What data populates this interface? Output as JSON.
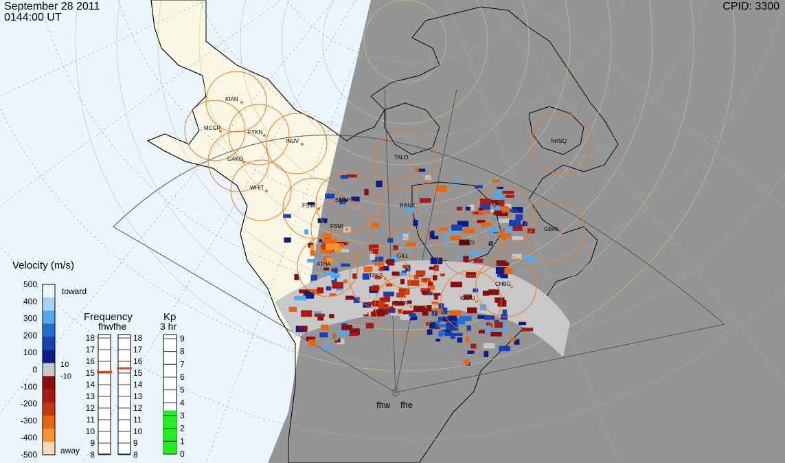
{
  "header": {
    "date": "September 28 2011",
    "time": "0144:00 UT",
    "cpid_label": "CPID:",
    "cpid": "3300"
  },
  "velocity_scale": {
    "title": "Velocity (m/s)",
    "toward": "toward",
    "away": "away",
    "ticks": [
      "500",
      "400",
      "300",
      "200",
      "100",
      "0",
      "-100",
      "-200",
      "-300",
      "-400",
      "-500"
    ],
    "small_pos": "10",
    "small_neg": "-10",
    "colors": [
      "#e8f4ff",
      "#a6d2f7",
      "#54a8ec",
      "#1f6fd3",
      "#1740b0",
      "#0a1e85",
      "#c8c8c8",
      "#8a0d0d",
      "#a91b10",
      "#c8380c",
      "#e8650d",
      "#f6932e",
      "#fcd8b3"
    ]
  },
  "frequency": {
    "title": "Frequency",
    "radars": "fhwfhe",
    "ticks": [
      "18",
      "17",
      "16",
      "15",
      "14",
      "13",
      "12",
      "11",
      "10",
      "9",
      "8"
    ],
    "fhw_value": 15.1,
    "fhe_value": 15.4
  },
  "kp": {
    "title": "Kp",
    "subtitle": "3 hr",
    "ticks": [
      "9",
      "8",
      "7",
      "6",
      "5",
      "4",
      "3",
      "2",
      "1",
      "0"
    ],
    "value": 3.4
  },
  "radar_labels": {
    "fhw": "fhw",
    "fhe": "fhe"
  },
  "stations": [
    {
      "code": "KIAN"
    },
    {
      "code": "MCGR"
    },
    {
      "code": "FYKN"
    },
    {
      "code": "INUV"
    },
    {
      "code": "GAKO"
    },
    {
      "code": "WHIT"
    },
    {
      "code": "FSIM"
    },
    {
      "code": "SNAP"
    },
    {
      "code": "FSMI"
    },
    {
      "code": "ATHA"
    },
    {
      "code": "TALO"
    },
    {
      "code": "RANK"
    },
    {
      "code": "KUUJ"
    },
    {
      "code": "GBAY"
    },
    {
      "code": "NRSQ"
    },
    {
      "code": "SNKO"
    },
    {
      "code": "GILL"
    },
    {
      "code": "TPAS"
    },
    {
      "code": "RINA"
    },
    {
      "code": "KAPU"
    },
    {
      "code": "CHBG"
    }
  ],
  "colors": {
    "ocean": "#eaf5fd",
    "land": "#faf8e4",
    "night": "#959595",
    "scatter": "#c8c8c8",
    "circle": "#ee7722",
    "kp_fill": "#22ee22",
    "freq_mark": "#d44a1a"
  }
}
